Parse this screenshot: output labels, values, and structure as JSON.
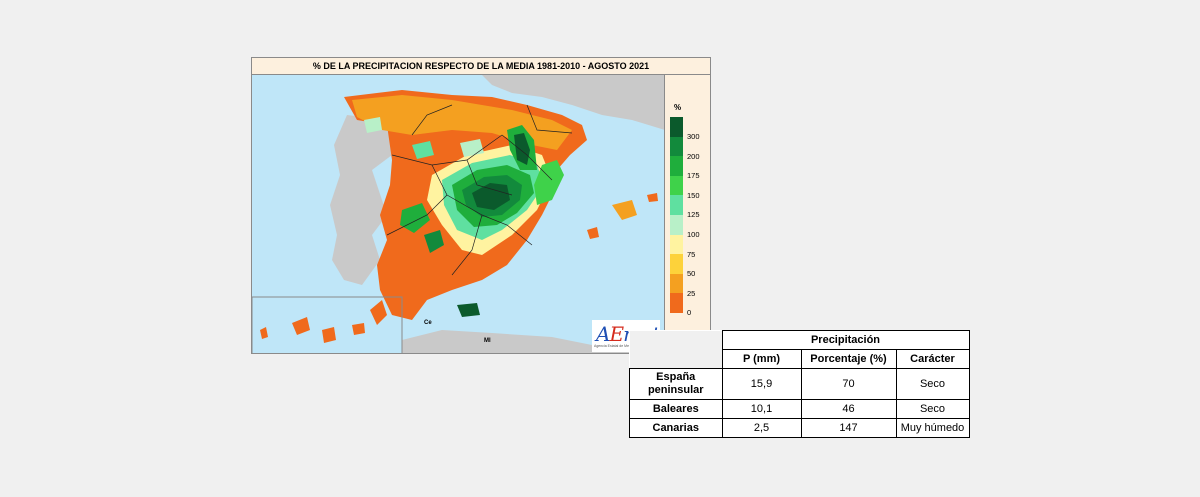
{
  "map": {
    "title": "% DE LA PRECIPITACION RESPECTO DE LA MEDIA 1981-2010 - AGOSTO 2021",
    "legend_unit": "%",
    "legend": [
      {
        "label": "300",
        "color": "#0b5a2c"
      },
      {
        "label": "200",
        "color": "#128a3c"
      },
      {
        "label": "175",
        "color": "#1fae3c"
      },
      {
        "label": "150",
        "color": "#3fd24a"
      },
      {
        "label": "125",
        "color": "#5fe0a0"
      },
      {
        "label": "100",
        "color": "#b8f0c8"
      },
      {
        "label": "75",
        "color": "#fff3a0"
      },
      {
        "label": "50",
        "color": "#fdd23a"
      },
      {
        "label": "25",
        "color": "#f4a020"
      },
      {
        "label": "0",
        "color": "#f06a1c"
      }
    ],
    "places": {
      "ceuta": "Ce",
      "melilla": "Ml"
    },
    "logo": {
      "word_a": "A",
      "word_e": "E",
      "word_rest": "met",
      "subtitle": "Agencia Estatal de Meteorología"
    }
  },
  "table": {
    "group_header": "Precipitación",
    "columns": [
      "P (mm)",
      "Porcentaje (%)",
      "Carácter"
    ],
    "rows": [
      {
        "region": "España peninsular",
        "p": "15,9",
        "pct": "70",
        "character": "Seco"
      },
      {
        "region": "Baleares",
        "p": "10,1",
        "pct": "46",
        "character": "Seco"
      },
      {
        "region": "Canarias",
        "p": "2,5",
        "pct": "147",
        "character": "Muy húmedo"
      }
    ]
  }
}
